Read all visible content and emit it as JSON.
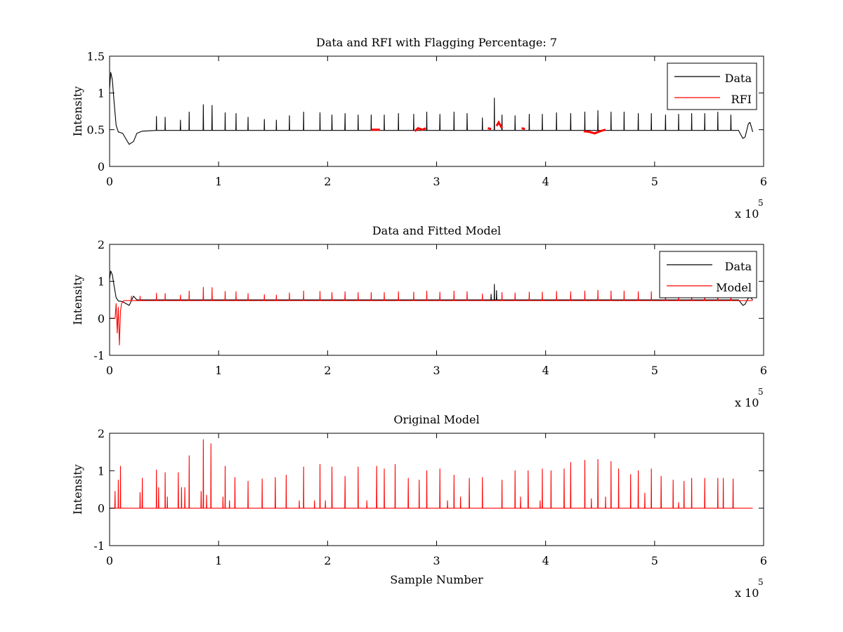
{
  "colors": {
    "data": "#000000",
    "rfi": "#ff0000",
    "model": "#ff0000",
    "axes": "#000000",
    "background": "#ffffff"
  },
  "chart_data": [
    {
      "type": "line",
      "title": "Data and RFI with Flagging Percentage: 7",
      "xlabel": "",
      "ylabel": "Intensity",
      "xlim": [
        0,
        600000
      ],
      "ylim": [
        0,
        1.5
      ],
      "xticks": [
        "0",
        "1",
        "2",
        "3",
        "4",
        "5",
        "6"
      ],
      "yticks": [
        "0",
        "0.5",
        "1",
        "1.5"
      ],
      "x_exponent_label": "x 10",
      "x_exponent": "5",
      "legend": {
        "position": "top-right",
        "entries": [
          "Data",
          "RFI"
        ]
      },
      "grid": false,
      "series": [
        {
          "name": "Data",
          "color": "#000000",
          "baseline": 0.49,
          "x_max": 590000,
          "start_profile": {
            "x": [
              0,
              1000,
              2500,
              4000,
              6000,
              8000,
              12000,
              18000,
              22000,
              25000,
              30000
            ],
            "y": [
              1.05,
              1.28,
              1.18,
              0.9,
              0.56,
              0.47,
              0.45,
              0.3,
              0.34,
              0.45,
              0.48
            ]
          },
          "end_profile": {
            "x": [
              577000,
              581000,
              583000,
              586000,
              587500,
              590000
            ],
            "y": [
              0.49,
              0.38,
              0.4,
              0.58,
              0.6,
              0.47
            ]
          },
          "spikes": {
            "x": [
              10000,
              20000,
              28000,
              43000,
              51000,
              65000,
              73000,
              86000,
              94000,
              106000,
              116000,
              127000,
              142000,
              153000,
              165000,
              178000,
              193000,
              204000,
              216000,
              228000,
              240000,
              252000,
              265000,
              279000,
              291000,
              303000,
              316000,
              328000,
              342000,
              353000,
              360000,
              372000,
              385000,
              397000,
              410000,
              423000,
              436000,
              448000,
              460000,
              472000,
              485000,
              497000,
              510000,
              522000,
              534000,
              546000,
              558000,
              570000,
              582000
            ],
            "y": [
              0.68,
              0.6,
              0.62,
              0.68,
              0.67,
              0.63,
              0.74,
              0.84,
              0.83,
              0.73,
              0.72,
              0.67,
              0.64,
              0.63,
              0.69,
              0.74,
              0.73,
              0.7,
              0.72,
              0.7,
              0.7,
              0.7,
              0.72,
              0.71,
              0.74,
              0.71,
              0.74,
              0.72,
              0.66,
              0.93,
              0.7,
              0.69,
              0.71,
              0.71,
              0.73,
              0.72,
              0.74,
              0.76,
              0.74,
              0.74,
              0.72,
              0.72,
              0.7,
              0.71,
              0.72,
              0.72,
              0.74,
              0.7,
              0.65
            ]
          }
        },
        {
          "name": "RFI",
          "color": "#ff0000",
          "segments": [
            {
              "x": [
                240000,
                248000
              ],
              "y": [
                0.5,
                0.5
              ]
            },
            {
              "x": [
                280000,
                283000,
                287000,
                290000
              ],
              "y": [
                0.48,
                0.52,
                0.5,
                0.52
              ]
            },
            {
              "x": [
                347000,
                350000
              ],
              "y": [
                0.52,
                0.51
              ]
            },
            {
              "x": [
                355000,
                357000,
                360000
              ],
              "y": [
                0.55,
                0.6,
                0.52
              ]
            },
            {
              "x": [
                378000,
                381000
              ],
              "y": [
                0.52,
                0.51
              ]
            },
            {
              "x": [
                435000,
                440000,
                445000,
                450000,
                455000
              ],
              "y": [
                0.48,
                0.47,
                0.45,
                0.48,
                0.5
              ]
            }
          ]
        }
      ]
    },
    {
      "type": "line",
      "title": "Data and Fitted Model",
      "xlabel": "",
      "ylabel": "Intensity",
      "xlim": [
        0,
        600000
      ],
      "ylim": [
        -1,
        2
      ],
      "xticks": [
        "0",
        "1",
        "2",
        "3",
        "4",
        "5",
        "6"
      ],
      "yticks": [
        "-1",
        "0",
        "1",
        "2"
      ],
      "x_exponent_label": "x 10",
      "x_exponent": "5",
      "legend": {
        "position": "top-right",
        "entries": [
          "Data",
          "Model"
        ]
      },
      "grid": false,
      "series": [
        {
          "name": "Data",
          "color": "#000000",
          "baseline": 0.5,
          "x_max": 590000,
          "start_profile": {
            "x": [
              0,
              1000,
              2500,
              4000,
              6000,
              8000,
              12000,
              18000,
              22000,
              25000,
              30000
            ],
            "y": [
              1.05,
              1.28,
              1.18,
              0.9,
              0.56,
              0.47,
              0.45,
              0.35,
              0.6,
              0.5,
              0.5
            ]
          },
          "end_profile": {
            "x": [
              577000,
              581000,
              583000,
              586000,
              587500,
              590000
            ],
            "y": [
              0.5,
              0.35,
              0.38,
              0.55,
              0.58,
              0.5
            ]
          },
          "spikes": {
            "x": [
              10000,
              350000,
              353000,
              355000
            ],
            "y": [
              0.7,
              0.65,
              0.92,
              0.75
            ]
          }
        },
        {
          "name": "Model",
          "color": "#ff0000",
          "baseline": 0.48,
          "x_max": 590000,
          "start_profile": {
            "x": [
              0,
              5000,
              6000,
              7000,
              8000,
              9000,
              10000,
              11000,
              13000
            ],
            "y": [
              0,
              0,
              0.4,
              -0.4,
              0.3,
              -0.72,
              0.2,
              0.4,
              0.48
            ]
          },
          "end_profile": {
            "x": [
              585000,
              590000
            ],
            "y": [
              0.48,
              0.48
            ]
          },
          "spikes": {
            "x": [
              20000,
              28000,
              43000,
              51000,
              65000,
              73000,
              86000,
              94000,
              106000,
              116000,
              127000,
              142000,
              153000,
              165000,
              178000,
              193000,
              204000,
              216000,
              228000,
              240000,
              252000,
              265000,
              279000,
              291000,
              303000,
              316000,
              328000,
              342000,
              360000,
              372000,
              385000,
              397000,
              410000,
              423000,
              436000,
              448000,
              460000,
              472000,
              485000,
              497000,
              510000,
              522000,
              534000,
              546000,
              558000,
              570000
            ],
            "y": [
              0.6,
              0.6,
              0.68,
              0.67,
              0.63,
              0.74,
              0.84,
              0.83,
              0.73,
              0.72,
              0.67,
              0.64,
              0.63,
              0.69,
              0.74,
              0.73,
              0.7,
              0.72,
              0.7,
              0.7,
              0.7,
              0.72,
              0.71,
              0.74,
              0.71,
              0.74,
              0.72,
              0.66,
              0.7,
              0.69,
              0.71,
              0.71,
              0.73,
              0.72,
              0.74,
              0.76,
              0.74,
              0.74,
              0.72,
              0.72,
              0.7,
              0.71,
              0.72,
              0.72,
              0.74,
              0.7
            ]
          }
        }
      ]
    },
    {
      "type": "line",
      "title": "Original Model",
      "xlabel": "Sample Number",
      "ylabel": "Intensity",
      "xlim": [
        0,
        600000
      ],
      "ylim": [
        -1,
        2
      ],
      "xticks": [
        "0",
        "1",
        "2",
        "3",
        "4",
        "5",
        "6"
      ],
      "yticks": [
        "-1",
        "0",
        "1",
        "2"
      ],
      "x_exponent_label": "x 10",
      "x_exponent": "5",
      "legend": null,
      "grid": false,
      "series": [
        {
          "name": "",
          "color": "#ff0000",
          "baseline": 0,
          "x_max": 590000,
          "start_profile": {
            "x": [
              0,
              2000
            ],
            "y": [
              0,
              0
            ]
          },
          "end_profile": {
            "x": [
              588000,
              590000
            ],
            "y": [
              0,
              0
            ]
          },
          "spikes": {
            "x": [
              5000,
              8000,
              10000,
              28000,
              30000,
              43000,
              45000,
              51000,
              53000,
              63000,
              66000,
              69000,
              73000,
              84000,
              86000,
              89000,
              93000,
              104000,
              106000,
              110000,
              115000,
              127000,
              140000,
              152000,
              162000,
              174000,
              178000,
              188000,
              193000,
              198000,
              204000,
              216000,
              228000,
              236000,
              245000,
              252000,
              262000,
              274000,
              284000,
              291000,
              303000,
              310000,
              316000,
              322000,
              330000,
              342000,
              360000,
              372000,
              377000,
              384000,
              395000,
              397000,
              405000,
              417000,
              423000,
              436000,
              442000,
              448000,
              455000,
              460000,
              467000,
              478000,
              485000,
              491000,
              497000,
              506000,
              517000,
              522000,
              527000,
              534000,
              546000,
              558000,
              563000,
              572000
            ],
            "y": [
              0.45,
              0.75,
              1.12,
              0.42,
              0.8,
              1.02,
              0.55,
              0.95,
              0.3,
              0.95,
              0.55,
              0.55,
              1.4,
              0.45,
              1.83,
              0.35,
              1.72,
              0.3,
              1.12,
              0.2,
              0.82,
              0.72,
              0.78,
              0.82,
              0.88,
              0.2,
              1.1,
              0.2,
              1.17,
              0.2,
              1.1,
              0.85,
              1.1,
              0.2,
              1.12,
              1.05,
              1.17,
              0.8,
              0.75,
              1.0,
              1.05,
              0.2,
              0.88,
              0.3,
              0.8,
              0.82,
              0.75,
              1.0,
              0.3,
              1.0,
              0.2,
              1.05,
              1.0,
              1.05,
              1.22,
              1.28,
              0.25,
              1.3,
              0.3,
              1.25,
              1.05,
              0.9,
              1.0,
              0.4,
              1.05,
              0.85,
              0.75,
              0.15,
              0.72,
              0.8,
              0.8,
              0.8,
              0.8,
              0.78
            ]
          }
        }
      ]
    }
  ]
}
